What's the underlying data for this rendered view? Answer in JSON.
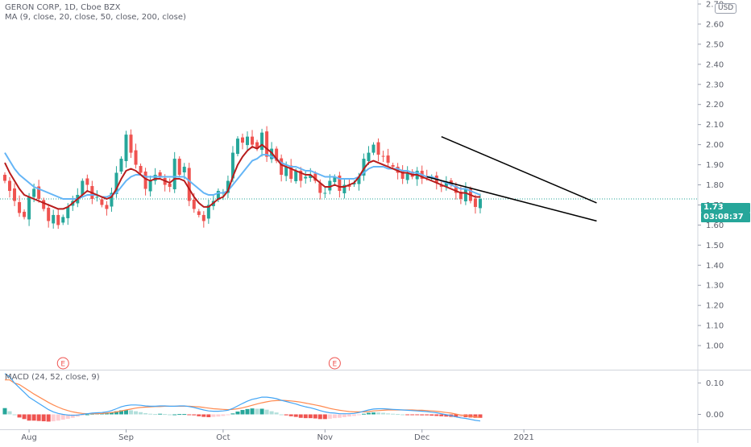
{
  "header": {
    "symbol": "GERON CORP, 1D, Cboe BZX",
    "ma_legend": "MA (9, close, 20, close, 50, close, 200, close)",
    "macd_legend": "MACD (24, 52, close, 9)",
    "currency": "USD"
  },
  "price_label": {
    "value": "1.73",
    "countdown": "03:08:37"
  },
  "earnings_markers": [
    {
      "label": "E",
      "x_index": 12
    },
    {
      "label": "E",
      "x_index": 68
    }
  ],
  "colors": {
    "up": "#26a69a",
    "down": "#ef5350",
    "ma_fast": "#b71c1c",
    "ma_slow": "#64b5f6",
    "macd_line": "#42a5f5",
    "signal_line": "#ff8a50",
    "trendline": "#000000",
    "last_price": "#26a69a"
  },
  "chart_data": [
    {
      "type": "candlestick",
      "title": "GERON CORP, 1D, Cboe BZX",
      "x_labels": [
        "Aug",
        "Sep",
        "Oct",
        "Nov",
        "Dec",
        "2021"
      ],
      "x_label_index": [
        5,
        25,
        45,
        66,
        86,
        107
      ],
      "y_ticks": [
        1.0,
        1.1,
        1.2,
        1.3,
        1.4,
        1.5,
        1.6,
        1.7,
        1.8,
        1.9,
        2.0,
        2.1,
        2.2,
        2.3,
        2.4,
        2.5,
        2.6,
        2.7
      ],
      "ylim": [
        0.88,
        2.72
      ],
      "x_count": 115,
      "last_price": 1.73,
      "close": [
        1.82,
        1.77,
        1.72,
        1.66,
        1.64,
        1.74,
        1.78,
        1.73,
        1.68,
        1.62,
        1.65,
        1.6,
        1.64,
        1.69,
        1.72,
        1.75,
        1.82,
        1.8,
        1.73,
        1.74,
        1.7,
        1.68,
        1.76,
        1.86,
        1.93,
        2.05,
        1.96,
        1.9,
        1.86,
        1.78,
        1.82,
        1.85,
        1.84,
        1.8,
        1.79,
        1.93,
        1.85,
        1.89,
        1.72,
        1.68,
        1.65,
        1.62,
        1.7,
        1.72,
        1.77,
        1.76,
        1.82,
        1.96,
        2.03,
        2.01,
        2.04,
        2.0,
        1.98,
        2.06,
        1.94,
        1.98,
        1.92,
        1.85,
        1.89,
        1.83,
        1.87,
        1.82,
        1.84,
        1.85,
        1.82,
        1.76,
        1.76,
        1.82,
        1.84,
        1.77,
        1.8,
        1.79,
        1.81,
        1.84,
        1.93,
        1.96,
        2.0,
        1.95,
        1.94,
        1.91,
        1.89,
        1.86,
        1.83,
        1.86,
        1.84,
        1.87,
        1.83,
        1.84,
        1.84,
        1.81,
        1.79,
        1.81,
        1.8,
        1.76,
        1.73,
        1.78,
        1.72,
        1.69,
        1.73
      ],
      "ma_fast": [
        1.91,
        1.86,
        1.82,
        1.78,
        1.75,
        1.74,
        1.73,
        1.72,
        1.71,
        1.7,
        1.69,
        1.68,
        1.68,
        1.69,
        1.71,
        1.73,
        1.75,
        1.77,
        1.76,
        1.75,
        1.74,
        1.73,
        1.74,
        1.78,
        1.83,
        1.87,
        1.88,
        1.87,
        1.85,
        1.83,
        1.82,
        1.83,
        1.83,
        1.82,
        1.81,
        1.83,
        1.83,
        1.82,
        1.78,
        1.74,
        1.71,
        1.69,
        1.69,
        1.71,
        1.73,
        1.74,
        1.77,
        1.84,
        1.9,
        1.94,
        1.97,
        1.99,
        1.98,
        2.0,
        1.98,
        1.96,
        1.93,
        1.9,
        1.89,
        1.88,
        1.87,
        1.86,
        1.85,
        1.85,
        1.83,
        1.81,
        1.79,
        1.79,
        1.8,
        1.79,
        1.79,
        1.8,
        1.81,
        1.84,
        1.88,
        1.91,
        1.92,
        1.91,
        1.9,
        1.89,
        1.88,
        1.87,
        1.86,
        1.86,
        1.85,
        1.85,
        1.84,
        1.83,
        1.82,
        1.81,
        1.8,
        1.79,
        1.78,
        1.77,
        1.76,
        1.76,
        1.75,
        1.74,
        1.74
      ],
      "ma_slow": [
        1.96,
        1.92,
        1.88,
        1.85,
        1.83,
        1.81,
        1.79,
        1.78,
        1.77,
        1.76,
        1.75,
        1.74,
        1.73,
        1.73,
        1.73,
        1.73,
        1.74,
        1.75,
        1.75,
        1.75,
        1.74,
        1.74,
        1.75,
        1.76,
        1.79,
        1.82,
        1.84,
        1.85,
        1.85,
        1.84,
        1.84,
        1.84,
        1.84,
        1.84,
        1.84,
        1.84,
        1.84,
        1.84,
        1.82,
        1.8,
        1.78,
        1.76,
        1.75,
        1.75,
        1.76,
        1.76,
        1.77,
        1.8,
        1.83,
        1.86,
        1.89,
        1.92,
        1.93,
        1.95,
        1.95,
        1.94,
        1.93,
        1.91,
        1.9,
        1.89,
        1.89,
        1.88,
        1.87,
        1.87,
        1.86,
        1.85,
        1.84,
        1.84,
        1.84,
        1.83,
        1.83,
        1.83,
        1.83,
        1.84,
        1.86,
        1.88,
        1.89,
        1.89,
        1.89,
        1.88,
        1.88,
        1.88,
        1.87,
        1.87,
        1.86,
        1.86,
        1.85,
        1.84,
        1.84,
        1.83,
        1.82,
        1.81,
        1.8,
        1.79,
        1.78,
        1.78,
        1.77,
        1.76,
        1.75
      ],
      "trendlines": [
        {
          "x1": 90,
          "y1": 2.04,
          "x2": 122,
          "y2": 1.71
        },
        {
          "x1": 87,
          "y1": 1.84,
          "x2": 122,
          "y2": 1.62
        }
      ]
    },
    {
      "type": "histogram",
      "title": "MACD (24, 52, close, 9)",
      "y_ticks": [
        0.0,
        0.1
      ],
      "ylim": [
        -0.045,
        0.14
      ],
      "macd": [
        0.13,
        0.12,
        0.1,
        0.085,
        0.07,
        0.055,
        0.045,
        0.035,
        0.025,
        0.015,
        0.008,
        0.003,
        0.0,
        -0.002,
        -0.003,
        -0.002,
        0.0,
        0.002,
        0.004,
        0.005,
        0.006,
        0.008,
        0.012,
        0.018,
        0.024,
        0.028,
        0.03,
        0.03,
        0.029,
        0.027,
        0.026,
        0.026,
        0.027,
        0.027,
        0.026,
        0.026,
        0.027,
        0.027,
        0.025,
        0.022,
        0.018,
        0.014,
        0.011,
        0.01,
        0.01,
        0.011,
        0.013,
        0.019,
        0.027,
        0.035,
        0.042,
        0.048,
        0.051,
        0.055,
        0.055,
        0.053,
        0.05,
        0.045,
        0.041,
        0.037,
        0.033,
        0.028,
        0.024,
        0.021,
        0.017,
        0.012,
        0.008,
        0.005,
        0.004,
        0.002,
        0.002,
        0.002,
        0.003,
        0.006,
        0.01,
        0.014,
        0.017,
        0.018,
        0.018,
        0.017,
        0.016,
        0.015,
        0.014,
        0.013,
        0.012,
        0.011,
        0.01,
        0.009,
        0.007,
        0.005,
        0.002,
        -0.001,
        -0.004,
        -0.008,
        -0.011,
        -0.013,
        -0.016,
        -0.019,
        -0.021
      ],
      "signal": [
        0.11,
        0.11,
        0.1,
        0.095,
        0.085,
        0.075,
        0.065,
        0.056,
        0.047,
        0.038,
        0.03,
        0.023,
        0.017,
        0.012,
        0.008,
        0.005,
        0.003,
        0.002,
        0.002,
        0.002,
        0.003,
        0.004,
        0.006,
        0.008,
        0.011,
        0.014,
        0.017,
        0.02,
        0.022,
        0.023,
        0.024,
        0.025,
        0.025,
        0.026,
        0.026,
        0.026,
        0.026,
        0.026,
        0.026,
        0.025,
        0.024,
        0.022,
        0.02,
        0.018,
        0.017,
        0.016,
        0.015,
        0.016,
        0.018,
        0.021,
        0.025,
        0.029,
        0.033,
        0.037,
        0.04,
        0.043,
        0.044,
        0.045,
        0.044,
        0.043,
        0.041,
        0.039,
        0.036,
        0.033,
        0.03,
        0.027,
        0.023,
        0.019,
        0.016,
        0.013,
        0.011,
        0.009,
        0.008,
        0.008,
        0.008,
        0.009,
        0.011,
        0.012,
        0.013,
        0.014,
        0.014,
        0.014,
        0.014,
        0.014,
        0.014,
        0.013,
        0.013,
        0.012,
        0.011,
        0.01,
        0.008,
        0.006,
        0.004,
        0.001,
        -0.002,
        -0.004,
        -0.006,
        -0.008,
        -0.01
      ]
    }
  ]
}
